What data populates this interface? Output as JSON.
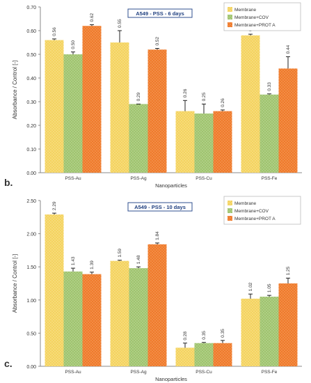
{
  "panels": [
    {
      "letter": "b."
    },
    {
      "letter": "c."
    }
  ],
  "colors": {
    "Membrane": "#f4d35e",
    "Membrane+COV": "#9fc46e",
    "Membrane+PROT A": "#ef7a2b",
    "title_border": "#2f4f8f",
    "title_text": "#1f3f7f"
  },
  "chart_data": [
    {
      "type": "bar",
      "title": "A549  - PSS - 6 days",
      "xlabel": "Nanoparticles",
      "ylabel": "Absorbance / Control [-]",
      "categories": [
        "PSS-Au",
        "PSS-Ag",
        "PSS-Cu",
        "PSS-Fe"
      ],
      "ylim": [
        0,
        0.7
      ],
      "yticks": [
        "0.00",
        "0.10",
        "0.20",
        "0.30",
        "0.40",
        "0.50",
        "0.60",
        "0.70"
      ],
      "legend_position": "top-right",
      "grid": false,
      "series": [
        {
          "name": "Membrane",
          "values": [
            0.56,
            0.55,
            0.26,
            0.58
          ],
          "errors": [
            0.005,
            0.05,
            0.045,
            0.005
          ],
          "labels": [
            "0.56",
            "0.55",
            "0.26",
            "0.58"
          ]
        },
        {
          "name": "Membrane+COV",
          "values": [
            0.5,
            0.29,
            0.25,
            0.33
          ],
          "errors": [
            0.01,
            0.0,
            0.04,
            0.003
          ],
          "labels": [
            "0.50",
            "0.29",
            "0.25",
            "0.33"
          ]
        },
        {
          "name": "Membrane+PROT A",
          "values": [
            0.62,
            0.52,
            0.26,
            0.44
          ],
          "errors": [
            0.005,
            0.005,
            0.005,
            0.05
          ],
          "labels": [
            "0.62",
            "0.52",
            "0.26",
            "0.44"
          ]
        }
      ]
    },
    {
      "type": "bar",
      "title": "A549  - PSS - 10 days",
      "xlabel": "Nanoparticles",
      "ylabel": "Absorbance / Control [-]",
      "categories": [
        "PSS-Au",
        "PSS-Ag",
        "PSS-Cu",
        "PSS-Fe"
      ],
      "ylim": [
        0,
        2.5
      ],
      "yticks": [
        "0.00",
        "0.50",
        "1.00",
        "1.50",
        "2.00",
        "2.50"
      ],
      "legend_position": "top-right",
      "grid": false,
      "series": [
        {
          "name": "Membrane",
          "values": [
            2.29,
            1.59,
            0.28,
            1.02
          ],
          "errors": [
            0.02,
            0.01,
            0.07,
            0.07
          ],
          "labels": [
            "2.29",
            "1.59",
            "0.28",
            "1.02"
          ]
        },
        {
          "name": "Membrane+COV",
          "values": [
            1.43,
            1.48,
            0.35,
            1.05
          ],
          "errors": [
            0.05,
            0.02,
            0.01,
            0.02
          ],
          "labels": [
            "1.43",
            "1.48",
            "0.35",
            "1.05"
          ]
        },
        {
          "name": "Membrane+PROT A",
          "values": [
            1.39,
            1.84,
            0.35,
            1.25
          ],
          "errors": [
            0.03,
            0.02,
            0.04,
            0.08
          ],
          "labels": [
            "1.39",
            "1.84",
            "0.35",
            "1.25"
          ]
        }
      ]
    }
  ]
}
